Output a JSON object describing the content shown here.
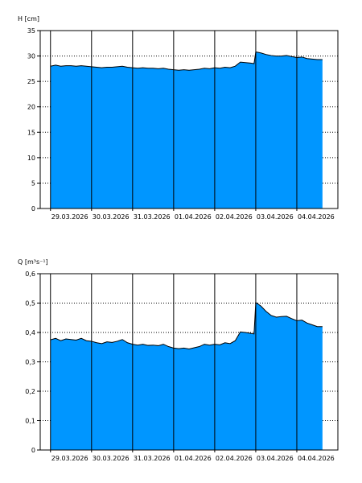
{
  "colors": {
    "fill": "#0096ff",
    "line": "#000000",
    "frame": "#000000",
    "grid": "#000000",
    "background": "#ffffff"
  },
  "chart_data": [
    {
      "type": "area",
      "title": "",
      "ylabel": "H [cm]",
      "xlabel": "",
      "ylim": [
        0,
        35
      ],
      "xlim": [
        "2026-03-28T18:00",
        "2026-04-05T00:00"
      ],
      "y_ticks": [
        0,
        5,
        10,
        15,
        20,
        25,
        30,
        35
      ],
      "y_tick_labels": [
        "0",
        "5",
        "10",
        "15",
        "20",
        "25",
        "30",
        "35"
      ],
      "x_tick_labels": [
        "29.03.2026",
        "30.03.2026",
        "31.03.2026",
        "01.04.2026",
        "02.04.2026",
        "03.04.2026",
        "04.04.2026"
      ],
      "grid": {
        "horizontal": "dotted",
        "vertical_day_lines": "solid"
      },
      "series": [
        {
          "x": [
            "2026-03-29T00:00",
            "2026-03-29T03:00",
            "2026-03-29T06:00",
            "2026-03-29T09:00",
            "2026-03-29T12:00",
            "2026-03-29T15:00",
            "2026-03-29T18:00",
            "2026-03-29T21:00",
            "2026-03-30T00:00",
            "2026-03-30T03:00",
            "2026-03-30T06:00",
            "2026-03-30T09:00",
            "2026-03-30T12:00",
            "2026-03-30T15:00",
            "2026-03-30T18:00",
            "2026-03-30T21:00",
            "2026-03-31T00:00",
            "2026-03-31T03:00",
            "2026-03-31T06:00",
            "2026-03-31T09:00",
            "2026-03-31T12:00",
            "2026-03-31T15:00",
            "2026-03-31T18:00",
            "2026-03-31T21:00",
            "2026-04-01T00:00",
            "2026-04-01T03:00",
            "2026-04-01T06:00",
            "2026-04-01T09:00",
            "2026-04-01T12:00",
            "2026-04-01T15:00",
            "2026-04-01T18:00",
            "2026-04-01T21:00",
            "2026-04-02T00:00",
            "2026-04-02T03:00",
            "2026-04-02T06:00",
            "2026-04-02T09:00",
            "2026-04-02T12:00",
            "2026-04-02T15:00",
            "2026-04-02T18:00",
            "2026-04-02T21:00",
            "2026-04-02T23:00",
            "2026-04-03T00:00",
            "2026-04-03T03:00",
            "2026-04-03T06:00",
            "2026-04-03T09:00",
            "2026-04-03T12:00",
            "2026-04-03T15:00",
            "2026-04-03T18:00",
            "2026-04-03T21:00",
            "2026-04-04T00:00",
            "2026-04-04T03:00",
            "2026-04-04T06:00",
            "2026-04-04T09:00",
            "2026-04-04T12:00",
            "2026-04-04T15:00"
          ],
          "values": [
            28.0,
            28.2,
            28.0,
            28.1,
            28.1,
            28.0,
            28.1,
            28.0,
            27.9,
            27.8,
            27.7,
            27.8,
            27.8,
            27.9,
            28.0,
            27.8,
            27.7,
            27.6,
            27.7,
            27.6,
            27.6,
            27.5,
            27.6,
            27.4,
            27.3,
            27.2,
            27.3,
            27.2,
            27.3,
            27.4,
            27.6,
            27.5,
            27.7,
            27.6,
            27.8,
            27.7,
            28.0,
            28.8,
            28.7,
            28.6,
            28.5,
            30.8,
            30.6,
            30.3,
            30.1,
            30.0,
            30.0,
            30.1,
            29.9,
            29.7,
            29.8,
            29.5,
            29.4,
            29.3,
            29.3
          ]
        }
      ]
    },
    {
      "type": "area",
      "title": "",
      "ylabel": "Q [m³s⁻¹]",
      "xlabel": "",
      "ylim": [
        0,
        0.6
      ],
      "xlim": [
        "2026-03-28T18:00",
        "2026-04-05T00:00"
      ],
      "y_ticks": [
        0,
        0.1,
        0.2,
        0.3,
        0.4,
        0.5,
        0.6
      ],
      "y_tick_labels": [
        "0",
        "0,1",
        "0,2",
        "0,3",
        "0,4",
        "0,5",
        "0,6"
      ],
      "x_tick_labels": [
        "29.03.2026",
        "30.03.2026",
        "31.03.2026",
        "01.04.2026",
        "02.04.2026",
        "03.04.2026",
        "04.04.2026"
      ],
      "grid": {
        "horizontal": "dotted",
        "vertical_day_lines": "solid"
      },
      "series": [
        {
          "x": [
            "2026-03-29T00:00",
            "2026-03-29T03:00",
            "2026-03-29T06:00",
            "2026-03-29T09:00",
            "2026-03-29T12:00",
            "2026-03-29T15:00",
            "2026-03-29T18:00",
            "2026-03-29T21:00",
            "2026-03-30T00:00",
            "2026-03-30T03:00",
            "2026-03-30T06:00",
            "2026-03-30T09:00",
            "2026-03-30T12:00",
            "2026-03-30T15:00",
            "2026-03-30T18:00",
            "2026-03-30T21:00",
            "2026-03-31T00:00",
            "2026-03-31T03:00",
            "2026-03-31T06:00",
            "2026-03-31T09:00",
            "2026-03-31T12:00",
            "2026-03-31T15:00",
            "2026-03-31T18:00",
            "2026-03-31T21:00",
            "2026-04-01T00:00",
            "2026-04-01T03:00",
            "2026-04-01T06:00",
            "2026-04-01T09:00",
            "2026-04-01T12:00",
            "2026-04-01T15:00",
            "2026-04-01T18:00",
            "2026-04-01T21:00",
            "2026-04-02T00:00",
            "2026-04-02T03:00",
            "2026-04-02T06:00",
            "2026-04-02T09:00",
            "2026-04-02T12:00",
            "2026-04-02T15:00",
            "2026-04-02T18:00",
            "2026-04-02T21:00",
            "2026-04-02T23:00",
            "2026-04-03T00:00",
            "2026-04-03T03:00",
            "2026-04-03T06:00",
            "2026-04-03T09:00",
            "2026-04-03T12:00",
            "2026-04-03T15:00",
            "2026-04-03T18:00",
            "2026-04-03T21:00",
            "2026-04-04T00:00",
            "2026-04-04T03:00",
            "2026-04-04T06:00",
            "2026-04-04T09:00",
            "2026-04-04T12:00",
            "2026-04-04T15:00"
          ],
          "values": [
            0.375,
            0.38,
            0.372,
            0.378,
            0.376,
            0.374,
            0.38,
            0.372,
            0.37,
            0.365,
            0.362,
            0.368,
            0.366,
            0.37,
            0.376,
            0.365,
            0.36,
            0.357,
            0.36,
            0.356,
            0.357,
            0.355,
            0.36,
            0.352,
            0.347,
            0.345,
            0.347,
            0.344,
            0.348,
            0.352,
            0.36,
            0.357,
            0.36,
            0.358,
            0.365,
            0.362,
            0.372,
            0.402,
            0.4,
            0.397,
            0.395,
            0.502,
            0.49,
            0.472,
            0.458,
            0.452,
            0.454,
            0.455,
            0.447,
            0.44,
            0.442,
            0.432,
            0.426,
            0.42,
            0.42
          ]
        }
      ]
    }
  ]
}
